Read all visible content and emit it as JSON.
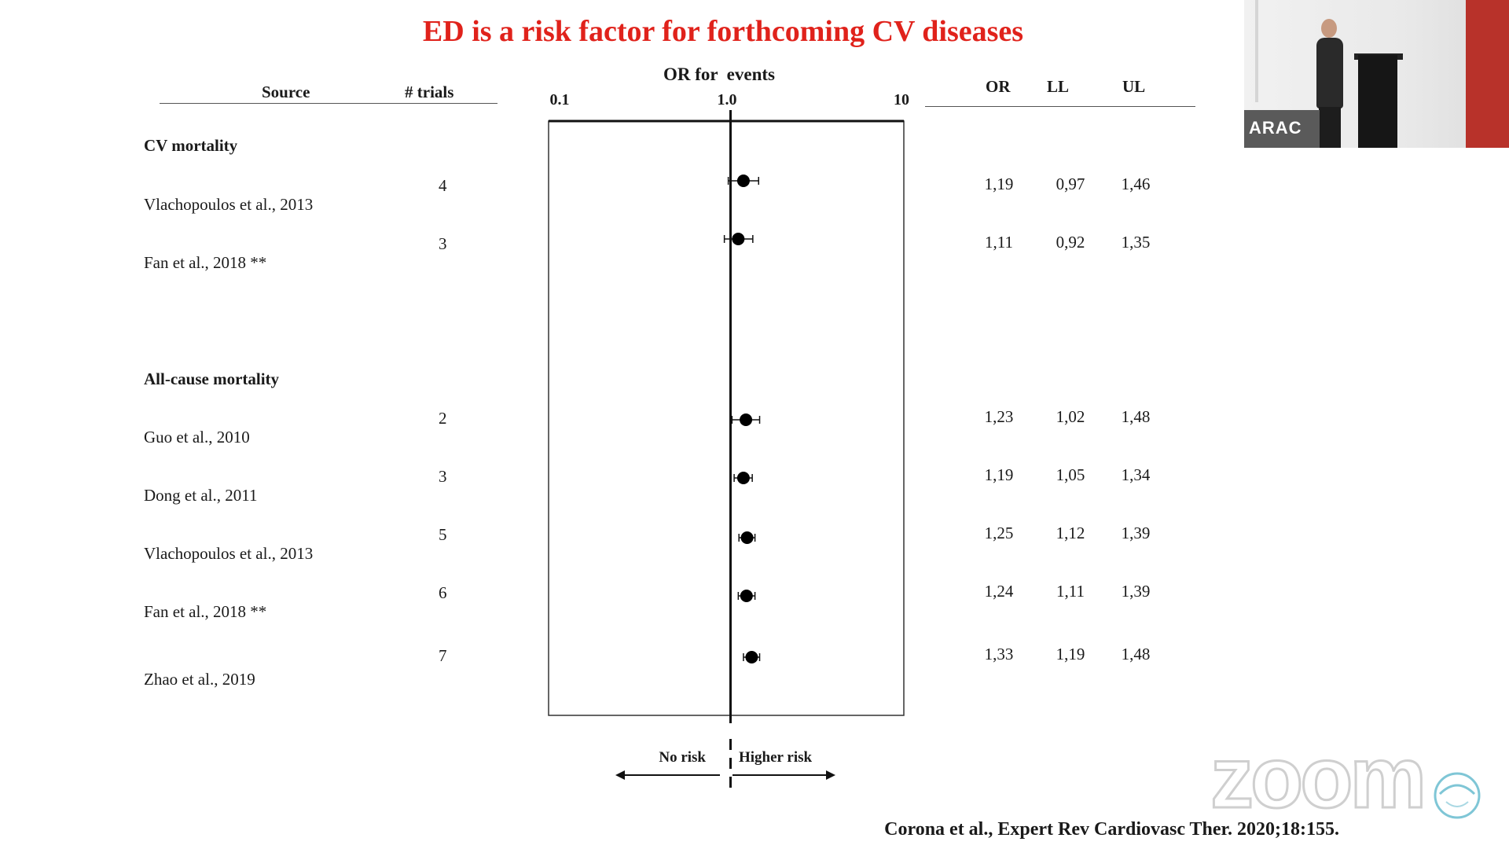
{
  "slide": {
    "title": "ED is a risk factor for forthcoming CV diseases",
    "citation": "Corona et al., Expert Rev Cardiovasc Ther. 2020;18:155."
  },
  "table": {
    "source_header": "Source",
    "trials_header": "# trials",
    "or_header": "OR",
    "ll_header": "LL",
    "ul_header": "UL"
  },
  "chart_data": {
    "type": "scatter",
    "title": "OR for  events",
    "xscale": "log",
    "xlim": [
      0.1,
      10
    ],
    "xticks": [
      "0.1",
      "1.0",
      "10"
    ],
    "reference_line": 1.0,
    "direction_labels": {
      "left": "No risk",
      "right": "Higher risk"
    },
    "groups": [
      {
        "label": "CV mortality",
        "rows": [
          {
            "source": "Vlachopoulos et al., 2013",
            "trials": "4",
            "or": 1.19,
            "ll": 0.97,
            "ul": 1.46,
            "or_text": "1,19",
            "ll_text": "0,97",
            "ul_text": "1,46"
          },
          {
            "source": "Fan et al., 2018 **",
            "trials": "3",
            "or": 1.11,
            "ll": 0.92,
            "ul": 1.35,
            "or_text": "1,11",
            "ll_text": "0,92",
            "ul_text": "1,35"
          }
        ]
      },
      {
        "label": "All-cause mortality",
        "rows": [
          {
            "source": "Guo et al., 2010",
            "trials": "2",
            "or": 1.23,
            "ll": 1.02,
            "ul": 1.48,
            "or_text": "1,23",
            "ll_text": "1,02",
            "ul_text": "1,48"
          },
          {
            "source": "Dong et al., 2011",
            "trials": "3",
            "or": 1.19,
            "ll": 1.05,
            "ul": 1.34,
            "or_text": "1,19",
            "ll_text": "1,05",
            "ul_text": "1,34"
          },
          {
            "source": "Vlachopoulos et al., 2013",
            "trials": "5",
            "or": 1.25,
            "ll": 1.12,
            "ul": 1.39,
            "or_text": "1,25",
            "ll_text": "1,12",
            "ul_text": "1,39"
          },
          {
            "source": "Fan et al., 2018 **",
            "trials": "6",
            "or": 1.24,
            "ll": 1.11,
            "ul": 1.39,
            "or_text": "1,24",
            "ll_text": "1,11",
            "ul_text": "1,39"
          },
          {
            "source": "Zhao et al., 2019",
            "trials": "7",
            "or": 1.33,
            "ll": 1.19,
            "ul": 1.48,
            "or_text": "1,33",
            "ll_text": "1,19",
            "ul_text": "1,48"
          }
        ]
      }
    ]
  },
  "video": {
    "participant_name": "ARAC",
    "watermark": "zoom"
  }
}
